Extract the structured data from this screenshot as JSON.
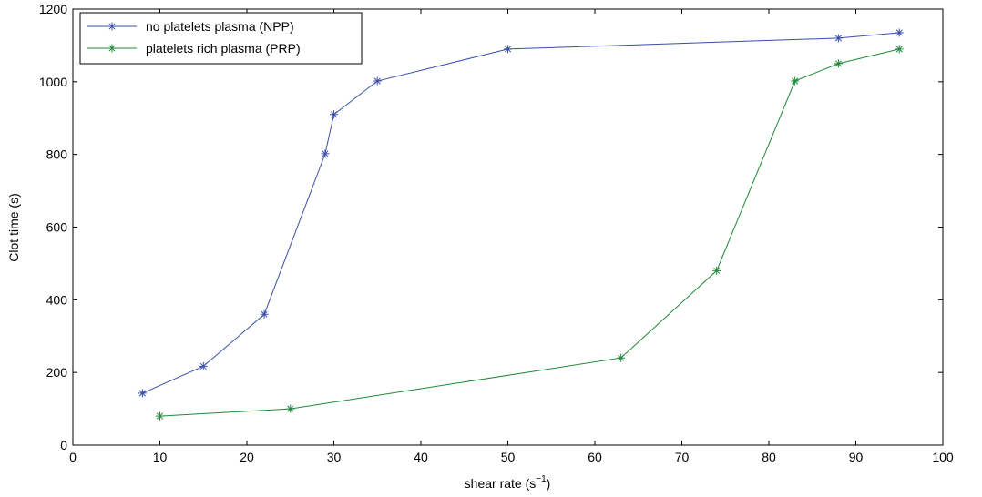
{
  "chart_data": {
    "type": "line",
    "title": "",
    "xlabel": "shear rate (s",
    "xlabel_sup": "−1",
    "xlabel_close": ")",
    "ylabel": "Clot time (s)",
    "xlim": [
      0,
      100
    ],
    "ylim": [
      0,
      1200
    ],
    "xticks": [
      0,
      10,
      20,
      30,
      40,
      50,
      60,
      70,
      80,
      90,
      100
    ],
    "yticks": [
      0,
      200,
      400,
      600,
      800,
      1000,
      1200
    ],
    "grid": false,
    "legend_position": "top-left",
    "marker": "asterisk",
    "series": [
      {
        "name": "no platelets plasma (NPP)",
        "color": "#3a4fa8",
        "x": [
          8,
          15,
          22,
          29,
          30,
          35,
          50,
          88,
          95
        ],
        "y": [
          143,
          217,
          360,
          802,
          910,
          1002,
          1090,
          1120,
          1135
        ]
      },
      {
        "name": "platelets rich plasma (PRP)",
        "color": "#1f8a3a",
        "x": [
          10,
          25,
          63,
          74,
          83,
          88,
          95
        ],
        "y": [
          80,
          100,
          240,
          480,
          1002,
          1050,
          1090
        ]
      }
    ]
  }
}
